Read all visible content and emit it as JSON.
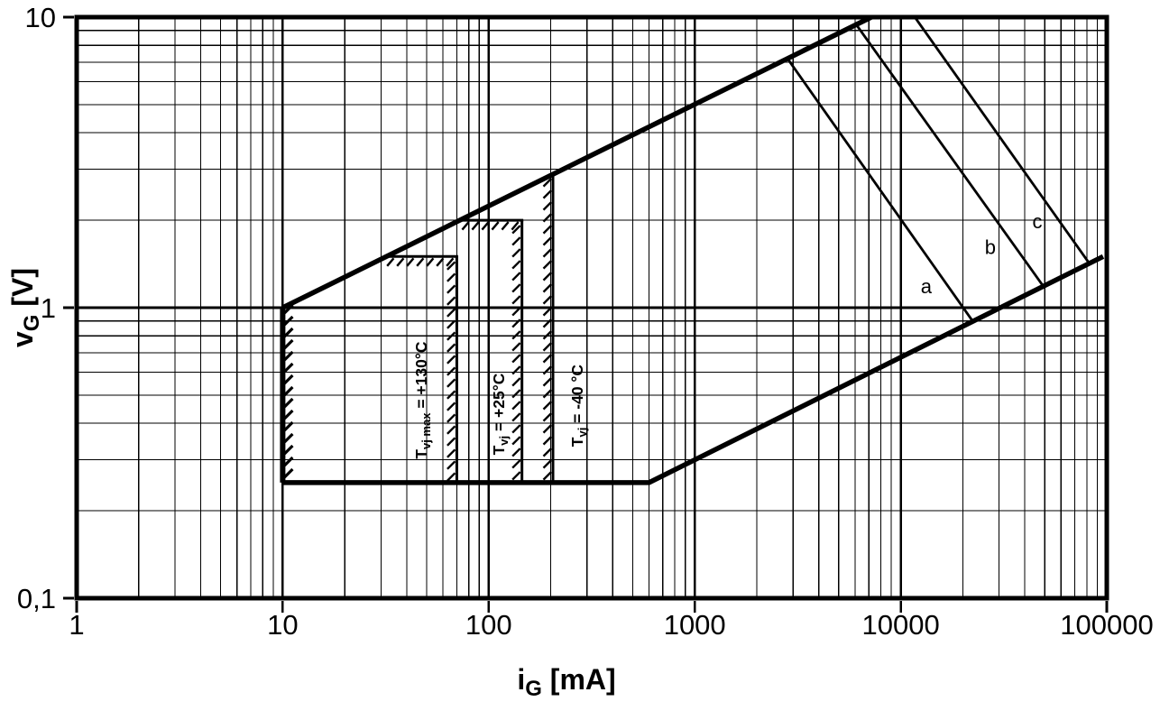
{
  "chart_data": {
    "type": "line",
    "title": "",
    "description": "Gate trigger characteristic: gate voltage vs gate current limit diagram (log-log)",
    "colors": {
      "background": "#ffffff",
      "line": "#000000"
    },
    "x_axis": {
      "label_base": "i",
      "label_sub": "G",
      "label_unit": " [mA]",
      "scale": "log",
      "min": 1,
      "max": 100000,
      "tick_values": [
        1,
        10,
        100,
        1000,
        10000,
        100000
      ],
      "tick_labels": [
        "1",
        "10",
        "100",
        "1000",
        "10000",
        "100000"
      ],
      "minor_grid_multiples": [
        2,
        3,
        4,
        5,
        6,
        7,
        8,
        9
      ]
    },
    "y_axis": {
      "label_base": "v",
      "label_sub": "G",
      "label_unit": " [V]",
      "scale": "log",
      "min": 0.1,
      "max": 10,
      "tick_values": [
        0.1,
        1,
        10
      ],
      "tick_labels": [
        "0,1",
        "1",
        "10"
      ],
      "minor_grid_multiples": [
        2,
        3,
        4,
        5,
        6,
        7,
        8,
        9
      ]
    },
    "interior_major_gridlines": {
      "x": [
        10,
        100,
        1000,
        10000
      ],
      "y": [
        1
      ]
    },
    "limit_region": {
      "upper_limit_points": [
        [
          10,
          1
        ],
        [
          7200,
          10
        ]
      ],
      "lower_limit_points": [
        [
          10,
          0.25
        ],
        [
          600,
          0.25
        ],
        [
          96000,
          1.5
        ]
      ],
      "min_current_limit_points": [
        [
          10,
          0.25
        ],
        [
          10,
          1
        ]
      ],
      "min_current_hatch_side": "right"
    },
    "temperature_lines": [
      {
        "label_base": "T",
        "label_sub": "vj max",
        "label_rest": " = +130°C",
        "i": 70,
        "v_bottom": 0.25,
        "v_top": 1.5,
        "shelf": {
          "v": 1.5,
          "from_i": 32
        },
        "hatch_side": "left",
        "label_pos": [
          47,
          0.48
        ]
      },
      {
        "label_base": "T",
        "label_sub": "vj",
        "label_rest": " = +25°C",
        "i": 145,
        "v_bottom": 0.25,
        "v_top": 2.0,
        "shelf": {
          "v": 2.0,
          "from_i": 72
        },
        "hatch_side": "left",
        "label_pos": [
          112,
          0.43
        ]
      },
      {
        "label_base": "T",
        "label_sub": "vj",
        "label_rest": " = -40 °C",
        "i": 205,
        "v_bottom": 0.25,
        "v_top": 2.9,
        "hatch_side": "left",
        "label_pos": [
          269,
          0.46
        ]
      }
    ],
    "power_lines": [
      {
        "label": "a",
        "points": [
          [
            2820,
            7.2
          ],
          [
            22300,
            0.9
          ]
        ],
        "label_pos": [
          13300,
          1.18
        ]
      },
      {
        "label": "b",
        "points": [
          [
            6100,
            9.4
          ],
          [
            48600,
            1.2
          ]
        ],
        "label_pos": [
          27200,
          1.61
        ]
      },
      {
        "label": "c",
        "points": [
          [
            11700,
            10
          ],
          [
            81700,
            1.43
          ]
        ],
        "label_pos": [
          46000,
          1.97
        ]
      }
    ]
  }
}
